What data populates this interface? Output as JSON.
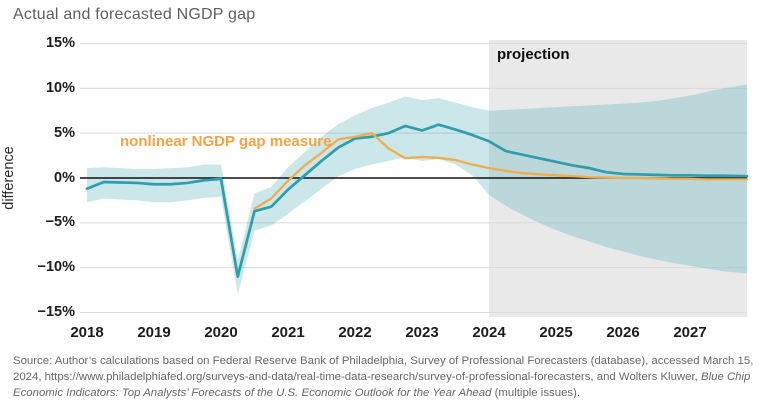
{
  "title": "Actual and forecasted NGDP gap",
  "colors": {
    "actual_line": "#2f9dac",
    "nonlinear_line": "#efad4d",
    "nonlinear_label_text": "#f0a544",
    "band_fill": "rgba(73,168,178,0.28)",
    "projection_bg": "#e9e9e9",
    "gridline": "#dadada",
    "zero_line": "#111111",
    "title_text": "#5e5e5e"
  },
  "annotations": {
    "projection_label": "projection",
    "nonlinear_label": "nonlinear NGDP gap measure"
  },
  "y_axis": {
    "label": "difference",
    "tick_values": [
      15,
      10,
      5,
      0,
      -5,
      -10,
      -15
    ],
    "tick_labels": [
      "15%",
      "10%",
      "5%",
      "0%",
      "−5%",
      "−10%",
      "−15%"
    ]
  },
  "x_axis": {
    "tick_years": [
      2018,
      2019,
      2020,
      2021,
      2022,
      2023,
      2024,
      2025,
      2026,
      2027
    ],
    "tick_labels": [
      "2018",
      "2019",
      "2020",
      "2021",
      "2022",
      "2023",
      "2024",
      "2025",
      "2026",
      "2027"
    ]
  },
  "source": {
    "prefix": "Source: Author’s calculations based on Federal Reserve Bank of Philadelphia, Survey of Professional Forecasters (database), accessed March 15, 2024, https://www.philadelphiafed.org/surveys-and-data/real-time-data-research/survey-of-professional-forecasters, and Wolters Kluwer, ",
    "italic": "Blue Chip Economic Indicators: Top Analysts’ Forecasts of the U.S. Economic Outlook for the Year Ahead",
    "suffix": " (multiple issues)."
  },
  "chart_data": {
    "type": "line",
    "title": "Actual and forecasted NGDP gap",
    "xlabel": "",
    "ylabel": "difference",
    "ylim": [
      -15,
      15
    ],
    "xlim": [
      2018,
      2028
    ],
    "grid": "horizontal",
    "legend": "none",
    "projection_start": 2024,
    "series": [
      {
        "name": "actual and forecasted NGDP gap",
        "color_key": "actual_line",
        "x": [
          2018,
          2018.25,
          2018.5,
          2018.75,
          2019,
          2019.25,
          2019.5,
          2019.75,
          2020,
          2020.25,
          2020.5,
          2020.75,
          2021,
          2021.25,
          2021.5,
          2021.75,
          2022,
          2022.25,
          2022.5,
          2022.75,
          2023,
          2023.25,
          2023.5,
          2023.75,
          2024,
          2024.25,
          2024.5,
          2024.75,
          2025,
          2025.25,
          2025.5,
          2025.75,
          2026,
          2026.25,
          2026.5,
          2026.75,
          2027,
          2027.25,
          2027.5,
          2027.85
        ],
        "values": [
          -1.2,
          -0.45,
          -0.5,
          -0.55,
          -0.7,
          -0.7,
          -0.55,
          -0.25,
          -0.1,
          -11.0,
          -3.7,
          -3.2,
          -1.3,
          0.3,
          1.9,
          3.4,
          4.4,
          4.6,
          5.0,
          5.8,
          5.3,
          5.95,
          5.4,
          4.8,
          4.1,
          3.0,
          2.6,
          2.2,
          1.8,
          1.4,
          1.1,
          0.65,
          0.45,
          0.4,
          0.35,
          0.3,
          0.3,
          0.25,
          0.25,
          0.2
        ]
      },
      {
        "name": "nonlinear NGDP gap measure",
        "color_key": "nonlinear_line",
        "x": [
          2020.5,
          2020.75,
          2021,
          2021.25,
          2021.5,
          2021.75,
          2022,
          2022.25,
          2022.5,
          2022.75,
          2023,
          2023.25,
          2023.5,
          2023.75,
          2024,
          2024.25,
          2024.5,
          2024.75,
          2025,
          2025.25,
          2025.5,
          2025.75,
          2026,
          2026.25,
          2026.5,
          2026.75,
          2027,
          2027.25,
          2027.5,
          2027.85
        ],
        "values": [
          -3.4,
          -2.3,
          -0.3,
          1.4,
          2.8,
          4.3,
          4.6,
          5.0,
          3.3,
          2.2,
          2.35,
          2.25,
          2.0,
          1.5,
          1.1,
          0.8,
          0.55,
          0.4,
          0.3,
          0.2,
          0.1,
          0.05,
          0.0,
          0.0,
          -0.05,
          -0.1,
          -0.1,
          -0.15,
          -0.15,
          -0.15
        ]
      }
    ],
    "band": {
      "name": "uncertainty band",
      "x": [
        2018,
        2018.25,
        2018.5,
        2018.75,
        2019,
        2019.25,
        2019.5,
        2019.75,
        2020,
        2020.25,
        2020.5,
        2020.75,
        2021,
        2021.25,
        2021.5,
        2021.75,
        2022,
        2022.25,
        2022.5,
        2022.75,
        2023,
        2023.25,
        2023.5,
        2023.75,
        2024,
        2024.25,
        2024.5,
        2024.75,
        2025,
        2025.25,
        2025.5,
        2025.75,
        2026,
        2026.25,
        2026.5,
        2026.75,
        2027,
        2027.25,
        2027.5,
        2027.85
      ],
      "lower": [
        -2.7,
        -2.3,
        -2.4,
        -2.5,
        -2.7,
        -2.7,
        -2.5,
        -2.2,
        -2.1,
        -13.0,
        -5.9,
        -5.3,
        -4.0,
        -2.6,
        -1.2,
        0.2,
        1.0,
        1.5,
        1.9,
        2.3,
        1.9,
        2.1,
        1.5,
        0.3,
        -1.9,
        -3.1,
        -4.1,
        -5.0,
        -5.8,
        -6.5,
        -7.1,
        -7.7,
        -8.2,
        -8.7,
        -9.1,
        -9.5,
        -9.8,
        -10.1,
        -10.4,
        -10.65
      ],
      "upper": [
        1.1,
        1.2,
        1.1,
        1.0,
        1.0,
        1.1,
        1.2,
        1.5,
        1.5,
        -9.2,
        -1.7,
        -1.0,
        1.2,
        2.9,
        4.6,
        6.0,
        7.0,
        7.8,
        8.4,
        9.1,
        8.7,
        8.9,
        8.4,
        7.9,
        7.5,
        7.6,
        7.7,
        7.8,
        7.9,
        8.0,
        8.1,
        8.2,
        8.3,
        8.4,
        8.6,
        8.9,
        9.2,
        9.6,
        10.0,
        10.45
      ]
    }
  }
}
